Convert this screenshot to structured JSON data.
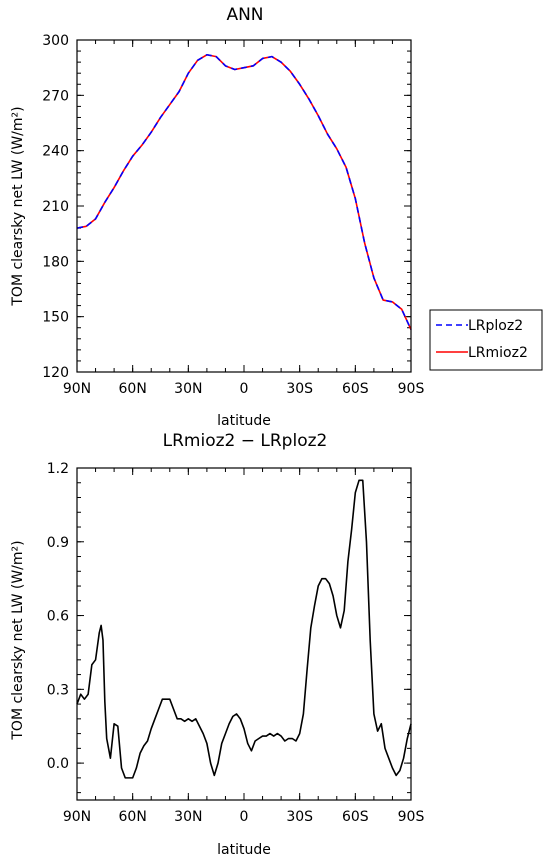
{
  "chart_data": [
    {
      "type": "line",
      "title": "ANN",
      "xlabel": "latitude",
      "ylabel": "TOM clearsky net LW (W/m²)",
      "ylim": [
        120,
        300
      ],
      "xlim": [
        90,
        -90
      ],
      "xticks": [
        90,
        60,
        30,
        0,
        -30,
        -60,
        -90
      ],
      "xtick_labels": [
        "90N",
        "60N",
        "30N",
        "0",
        "30S",
        "60S",
        "90S"
      ],
      "yticks": [
        120,
        150,
        180,
        210,
        240,
        270,
        300
      ],
      "ytick_labels": [
        "120",
        "150",
        "180",
        "210",
        "240",
        "270",
        "300"
      ],
      "legend": "right, outside plot",
      "x": [
        90,
        85,
        80,
        75,
        70,
        65,
        60,
        55,
        50,
        45,
        40,
        35,
        30,
        25,
        20,
        15,
        10,
        5,
        0,
        -5,
        -10,
        -15,
        -20,
        -25,
        -30,
        -35,
        -40,
        -45,
        -50,
        -55,
        -60,
        -65,
        -70,
        -75,
        -80,
        -85,
        -90
      ],
      "series": [
        {
          "name": "LRploz2",
          "color": "#0000ff",
          "dash": true,
          "values": [
            198,
            199,
            203,
            212,
            220,
            229,
            237,
            243,
            250,
            258,
            265,
            272,
            282,
            289,
            292,
            291,
            286,
            284,
            285,
            286,
            290,
            291,
            288,
            283,
            276,
            268,
            259,
            249,
            241,
            231,
            214,
            190,
            171,
            159,
            158,
            154,
            143
          ]
        },
        {
          "name": "LRmioz2",
          "color": "#ff0000",
          "dash": false,
          "values": [
            198,
            199,
            203,
            212,
            220,
            229,
            237,
            243,
            250,
            258,
            265,
            272,
            282,
            289,
            292,
            291,
            286,
            284,
            285,
            286,
            290,
            291,
            288,
            283,
            276,
            268,
            259,
            249,
            241,
            231,
            214,
            190,
            171,
            159,
            158,
            154,
            143
          ]
        }
      ]
    },
    {
      "type": "line",
      "title": "LRmioz2 − LRploz2",
      "xlabel": "latitude",
      "ylabel": "TOM clearsky net LW (W/m²)",
      "ylim": [
        -0.15,
        1.2
      ],
      "xlim": [
        90,
        -90
      ],
      "xticks": [
        90,
        60,
        30,
        0,
        -30,
        -60,
        -90
      ],
      "xtick_labels": [
        "90N",
        "60N",
        "30N",
        "0",
        "30S",
        "60S",
        "90S"
      ],
      "yticks": [
        0,
        0.3,
        0.6,
        0.9,
        1.2
      ],
      "ytick_labels": [
        "0.0",
        "0.3",
        "0.6",
        "0.9",
        "1.2"
      ],
      "x": [
        90,
        88,
        86,
        84,
        82,
        80,
        78,
        77,
        76,
        75,
        74,
        72,
        70,
        68,
        66,
        64,
        62,
        60,
        58,
        56,
        54,
        52,
        50,
        48,
        46,
        44,
        42,
        40,
        38,
        36,
        34,
        32,
        30,
        28,
        26,
        24,
        22,
        20,
        18,
        16,
        14,
        12,
        10,
        8,
        6,
        4,
        2,
        0,
        -2,
        -4,
        -6,
        -8,
        -10,
        -12,
        -14,
        -16,
        -18,
        -20,
        -22,
        -24,
        -26,
        -28,
        -30,
        -32,
        -34,
        -36,
        -38,
        -40,
        -42,
        -44,
        -46,
        -48,
        -50,
        -52,
        -54,
        -56,
        -58,
        -60,
        -62,
        -64,
        -66,
        -68,
        -70,
        -72,
        -74,
        -76,
        -78,
        -80,
        -82,
        -84,
        -86,
        -88,
        -90
      ],
      "series": [
        {
          "name": "",
          "color": "#000000",
          "values": [
            0.24,
            0.28,
            0.26,
            0.28,
            0.4,
            0.42,
            0.53,
            0.56,
            0.5,
            0.25,
            0.1,
            0.02,
            0.16,
            0.15,
            -0.02,
            -0.06,
            -0.06,
            -0.06,
            -0.02,
            0.04,
            0.07,
            0.09,
            0.14,
            0.18,
            0.22,
            0.26,
            0.26,
            0.26,
            0.22,
            0.18,
            0.18,
            0.17,
            0.18,
            0.17,
            0.18,
            0.15,
            0.12,
            0.08,
            0.0,
            -0.05,
            0.0,
            0.08,
            0.12,
            0.16,
            0.19,
            0.2,
            0.18,
            0.14,
            0.08,
            0.05,
            0.09,
            0.1,
            0.11,
            0.11,
            0.12,
            0.11,
            0.12,
            0.11,
            0.09,
            0.1,
            0.1,
            0.09,
            0.12,
            0.2,
            0.38,
            0.55,
            0.64,
            0.72,
            0.75,
            0.75,
            0.73,
            0.68,
            0.6,
            0.55,
            0.62,
            0.82,
            0.95,
            1.1,
            1.15,
            1.15,
            0.9,
            0.5,
            0.2,
            0.13,
            0.16,
            0.06,
            0.02,
            -0.02,
            -0.05,
            -0.03,
            0.02,
            0.1,
            0.16
          ]
        }
      ]
    }
  ]
}
